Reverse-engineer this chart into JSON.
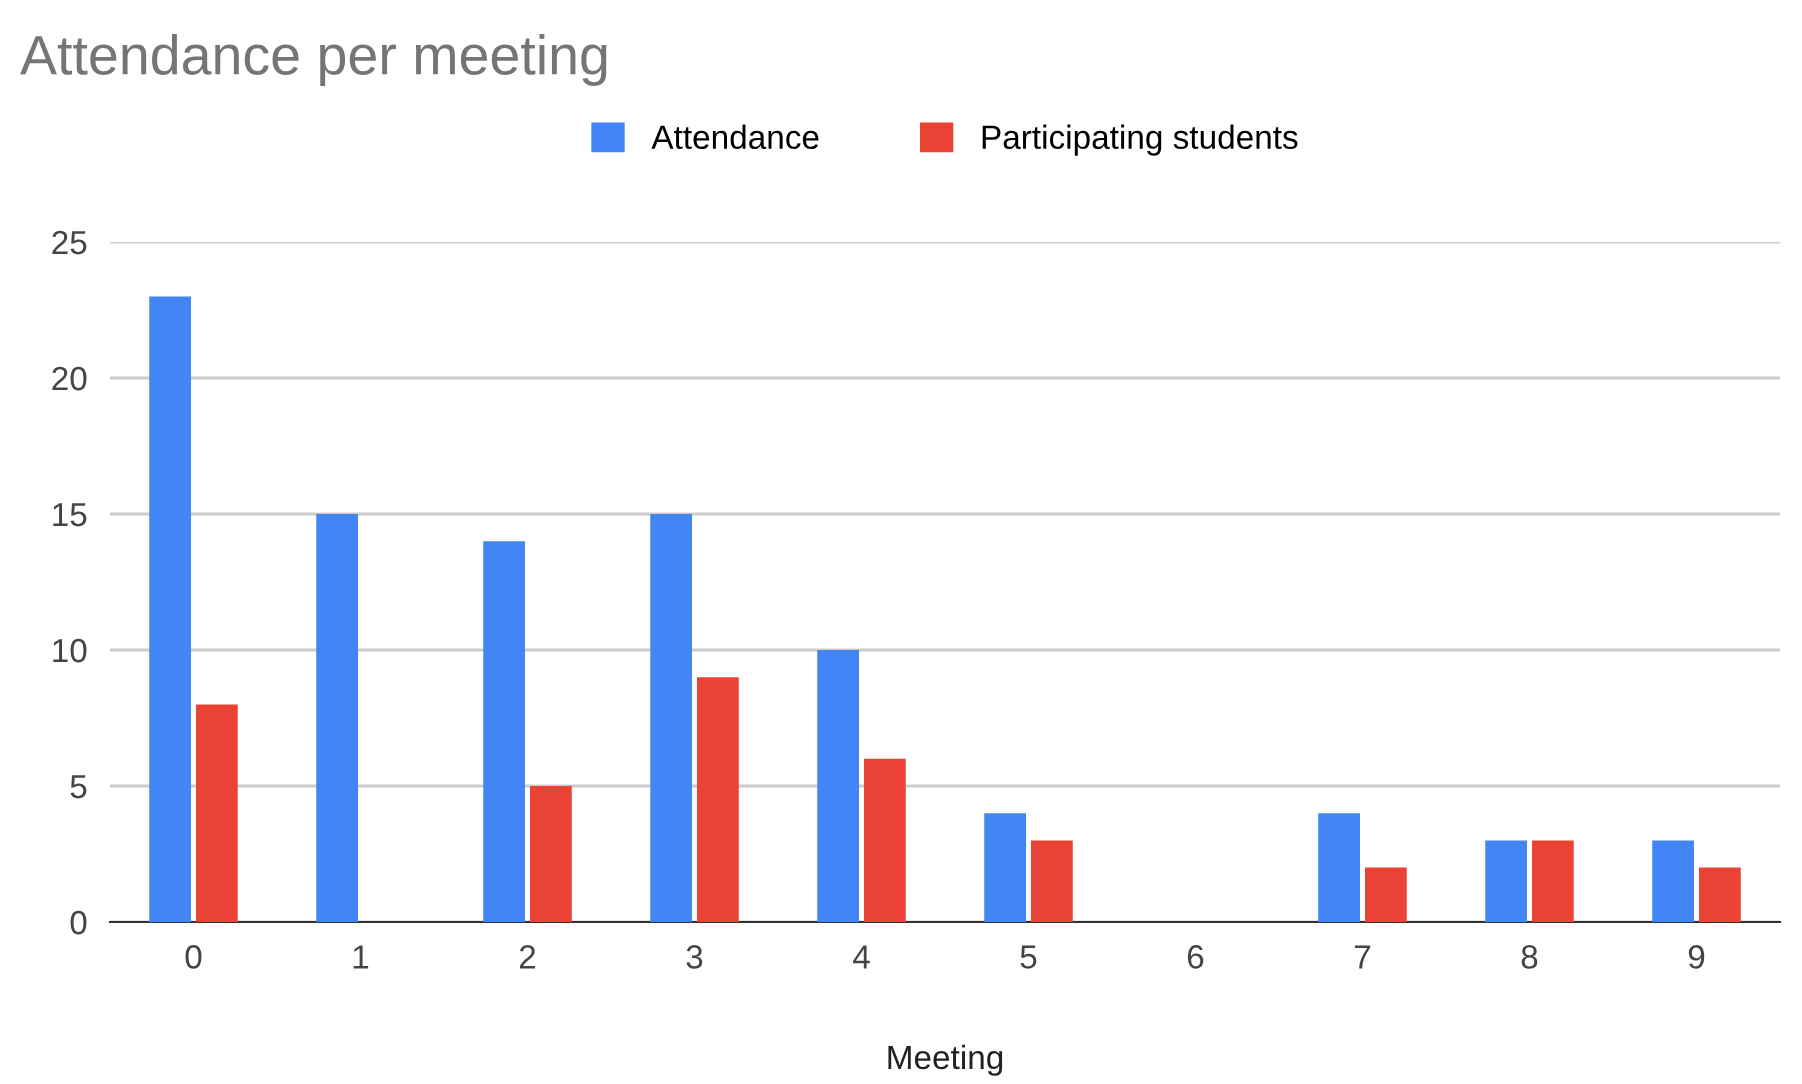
{
  "chart_data": {
    "type": "bar",
    "title": "Attendance per meeting",
    "xlabel": "Meeting",
    "categories": [
      "0",
      "1",
      "2",
      "3",
      "4",
      "5",
      "6",
      "7",
      "8",
      "9"
    ],
    "series": [
      {
        "name": "Attendance",
        "color": "#4285f4",
        "values": [
          23,
          15,
          14,
          15,
          10,
          4,
          null,
          4,
          3,
          3
        ]
      },
      {
        "name": "Participating students",
        "color": "#ea4335",
        "values": [
          8,
          null,
          5,
          9,
          6,
          3,
          null,
          2,
          3,
          2
        ]
      }
    ],
    "ylim": [
      0,
      25
    ],
    "yticks": [
      0,
      5,
      10,
      15,
      20,
      25
    ],
    "grid": "y",
    "legend": "top"
  }
}
